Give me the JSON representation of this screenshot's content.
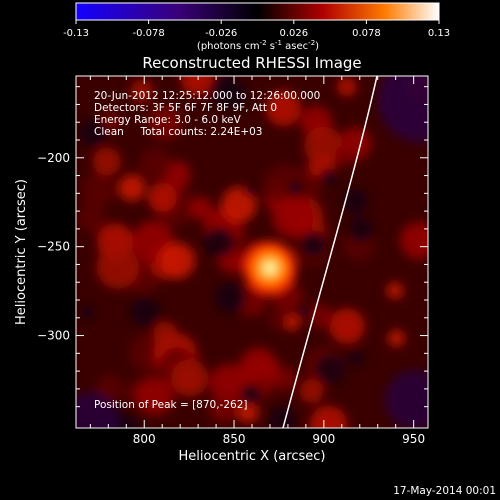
{
  "colorbar": {
    "ticks": [
      "-0.13",
      "-0.078",
      "-0.026",
      "0.026",
      "0.078",
      "0.13"
    ],
    "label_prefix": "(photons cm",
    "label_exp1": "-2",
    "label_mid1": " s",
    "label_exp2": "-1",
    "label_mid2": " asec",
    "label_exp3": "-2",
    "label_suffix": ")",
    "range": [
      -0.13,
      0.13
    ]
  },
  "chart_data": {
    "type": "heatmap",
    "title": "Reconstructed RHESSI Image",
    "xlabel": "Heliocentric X (arcsec)",
    "ylabel": "Heliocentric Y (arcsec)",
    "xlim": [
      762,
      958
    ],
    "ylim": [
      -352,
      -154
    ],
    "xticks": [
      800,
      850,
      900,
      950
    ],
    "yticks": [
      -200,
      -250,
      -300
    ],
    "peak": [
      870,
      -262
    ],
    "value_range": [
      -0.13,
      0.13
    ],
    "info_lines": [
      "20-Jun-2012 12:25:12.000 to 12:26:00.000",
      "Detectors: 3F 5F 6F 7F 8F 9F, Att 0",
      "Energy Range: 3.0 - 6.0 keV",
      "Clean     Total counts: 2.24E+03"
    ],
    "peak_text": "Position of Peak = [870,-262]"
  },
  "footer": {
    "date": "17-May-2014 00:01"
  }
}
